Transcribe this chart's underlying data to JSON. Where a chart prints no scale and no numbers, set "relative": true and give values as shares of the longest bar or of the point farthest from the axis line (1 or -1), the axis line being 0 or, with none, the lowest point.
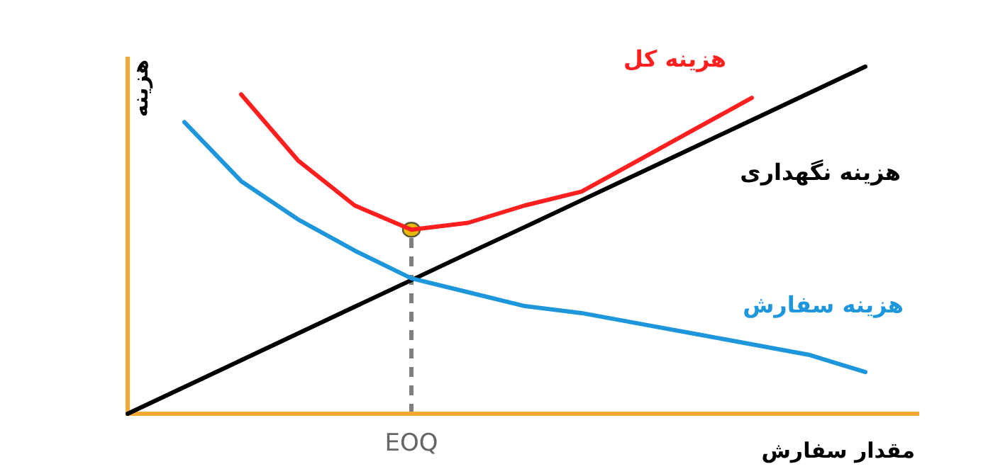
{
  "chart_data": {
    "type": "line",
    "relative": true,
    "ylabel": "هزینه",
    "xlabel": "مقدار سفارش",
    "categories": [
      null,
      null,
      null,
      null,
      null,
      null,
      null,
      null,
      null,
      null,
      null,
      null,
      null,
      null
    ],
    "series": [
      {
        "name": "هزینه کل",
        "color": "#ff1f1f",
        "values": [
          null,
          null,
          0.92,
          0.73,
          0.6,
          0.53,
          0.55,
          0.6,
          0.64,
          0.73,
          0.82,
          0.91,
          null,
          null
        ]
      },
      {
        "name": "هزینه نگهداری",
        "color": "#000000",
        "values": [
          0,
          0.077,
          0.154,
          0.231,
          0.308,
          0.385,
          0.462,
          0.538,
          0.615,
          0.692,
          0.769,
          0.846,
          0.923,
          1.0
        ]
      },
      {
        "name": "هزینه سفارش",
        "color": "#1e96dc",
        "values": [
          null,
          0.84,
          0.67,
          0.56,
          0.47,
          0.39,
          0.35,
          0.31,
          0.29,
          0.26,
          0.23,
          0.2,
          0.17,
          0.12
        ]
      }
    ],
    "annotations": [
      "EOQ"
    ],
    "grid": false
  }
}
